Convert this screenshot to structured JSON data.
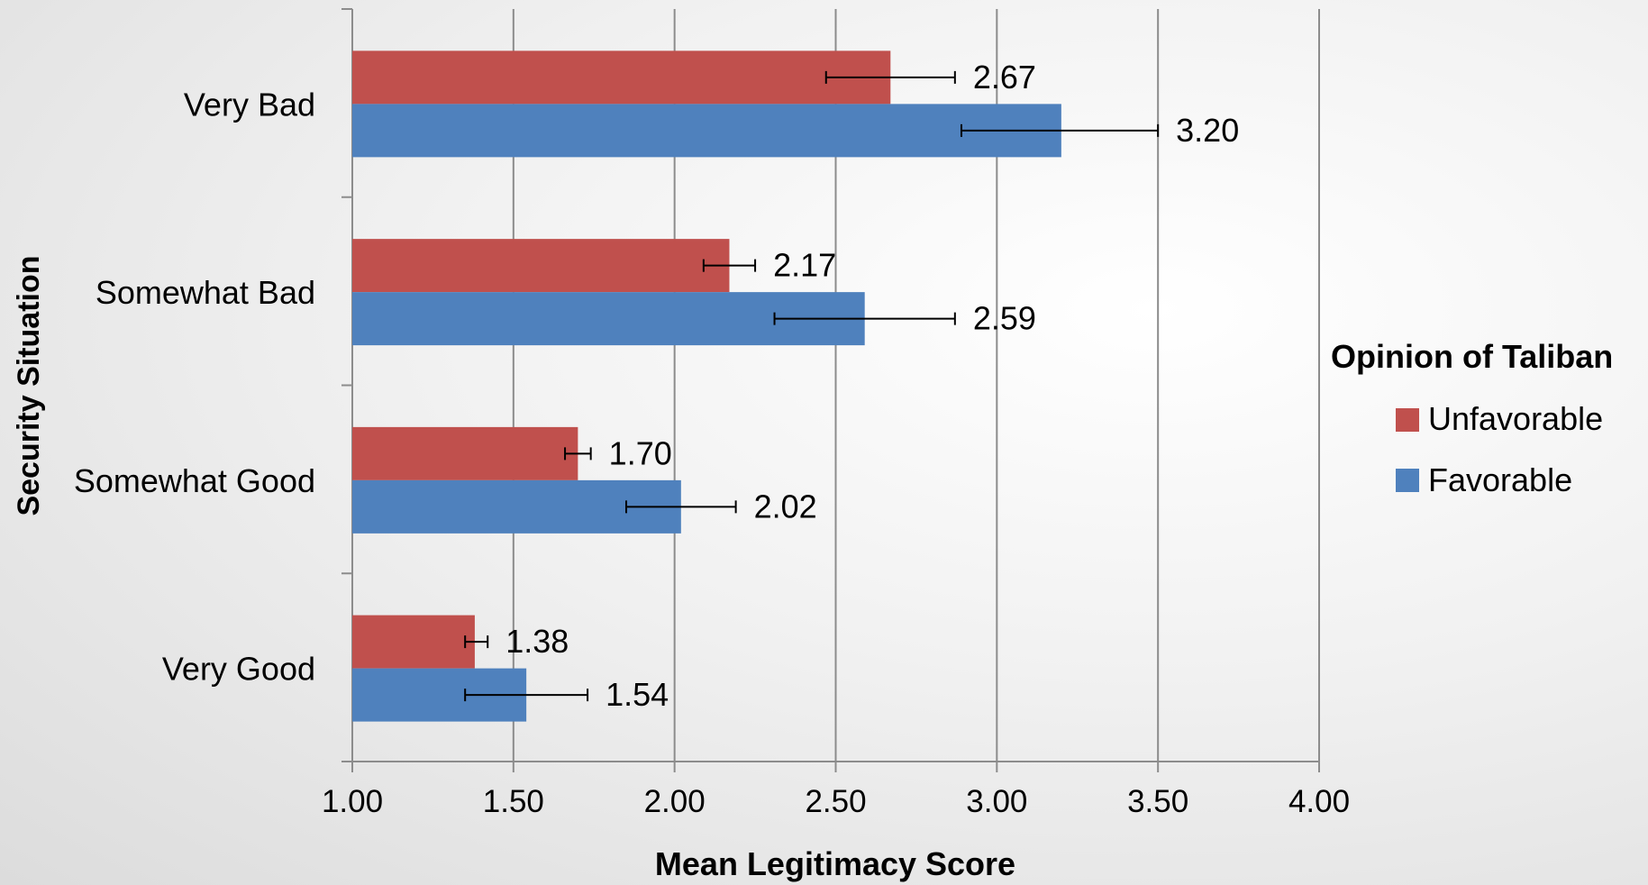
{
  "chart_data": {
    "type": "bar",
    "orientation": "horizontal",
    "categories": [
      "Very Bad",
      "Somewhat Bad",
      "Somewhat Good",
      "Very Good"
    ],
    "series": [
      {
        "name": "Unfavorable",
        "color": "#c0504d",
        "values": [
          2.67,
          2.17,
          1.7,
          1.38
        ],
        "error_low": [
          2.47,
          2.09,
          1.66,
          1.35
        ],
        "error_high": [
          2.87,
          2.25,
          1.74,
          1.42
        ],
        "labels": [
          "2.67",
          "2.17",
          "1.70",
          "1.38"
        ]
      },
      {
        "name": "Favorable",
        "color": "#4f81bd",
        "values": [
          3.2,
          2.59,
          2.02,
          1.54
        ],
        "error_low": [
          2.89,
          2.31,
          1.85,
          1.35
        ],
        "error_high": [
          3.5,
          2.87,
          2.19,
          1.73
        ],
        "labels": [
          "3.20",
          "2.59",
          "2.02",
          "1.54"
        ]
      }
    ],
    "xlabel": "Mean Legitimacy Score",
    "ylabel": "Security Situation",
    "xlim": [
      1.0,
      4.0
    ],
    "xticks": [
      1.0,
      1.5,
      2.0,
      2.5,
      3.0,
      3.5,
      4.0
    ],
    "xtick_labels": [
      "1.00",
      "1.50",
      "2.00",
      "2.50",
      "3.00",
      "3.50",
      "4.00"
    ],
    "grid": true,
    "legend": {
      "title": "Opinion of Taliban",
      "position": "right",
      "entries": [
        "Unfavorable",
        "Favorable"
      ]
    }
  }
}
